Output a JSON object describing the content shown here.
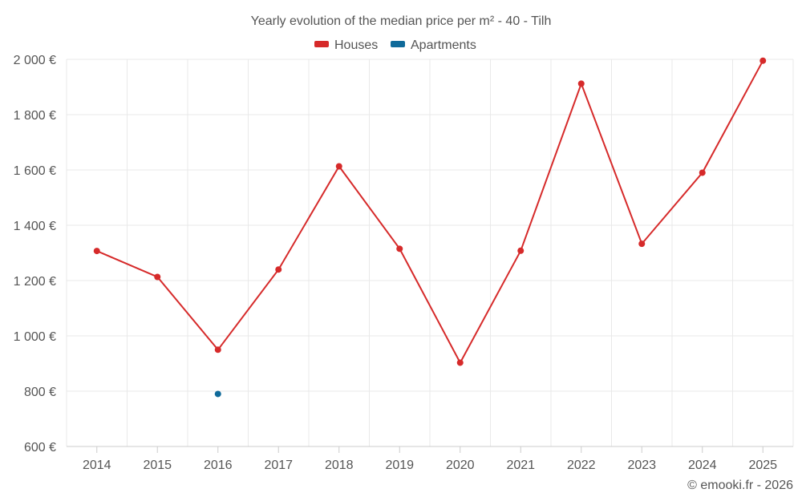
{
  "chart_data": {
    "type": "line",
    "title": "Yearly evolution of the median price per m² - 40 - Tilh",
    "categories": [
      "2014",
      "2015",
      "2016",
      "2017",
      "2018",
      "2019",
      "2020",
      "2021",
      "2022",
      "2023",
      "2024",
      "2025"
    ],
    "ylim": [
      600,
      2000
    ],
    "yticks": [
      600,
      800,
      1000,
      1200,
      1400,
      1600,
      1800,
      2000
    ],
    "ytick_labels": [
      "600 €",
      "800 €",
      "1 000 €",
      "1 200 €",
      "1 400 €",
      "1 600 €",
      "1 800 €",
      "2 000 €"
    ],
    "grid": true,
    "legend_position": "top-center",
    "series": [
      {
        "name": "Houses",
        "color": "#d62a2a",
        "values": [
          1307,
          1213,
          950,
          1240,
          1613,
          1315,
          903,
          1308,
          1912,
          1333,
          1590,
          1995
        ]
      },
      {
        "name": "Apartments",
        "color": "#0f6a9a",
        "values": [
          null,
          null,
          790,
          null,
          null,
          null,
          null,
          null,
          null,
          null,
          null,
          null
        ]
      }
    ],
    "credit": "© emooki.fr - 2026"
  }
}
